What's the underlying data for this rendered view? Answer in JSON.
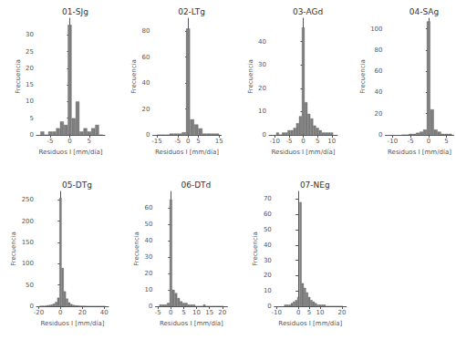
{
  "chart_data": [
    {
      "type": "bar",
      "title": "01-SJg",
      "xlabel": "Residuos I [mm/día]",
      "ylabel": "Frecuencia",
      "x": [
        -7,
        -6,
        -5,
        -4,
        -3,
        -2,
        -1,
        0,
        1,
        2,
        3,
        4,
        5,
        6,
        7,
        8
      ],
      "values": [
        1,
        0,
        1,
        1,
        2,
        4,
        3,
        33,
        5,
        10,
        1,
        2,
        1,
        2,
        3,
        0
      ],
      "color": "#7f7f7f",
      "xlim": [
        -8.5,
        9
      ],
      "xticks": [
        -5,
        0,
        5
      ],
      "ylim": [
        0,
        35
      ],
      "yticks": [
        0,
        5,
        10,
        15,
        20,
        25,
        30
      ],
      "grid": false
    },
    {
      "type": "bar",
      "title": "02-LTg",
      "xlabel": "Residuos I [mm/día]",
      "ylabel": "Frecuencia",
      "x": [
        -14,
        -12,
        -10,
        -8,
        -6,
        -4,
        -2,
        0,
        2,
        4,
        6,
        8,
        10,
        12,
        14
      ],
      "values": [
        0,
        0,
        0,
        1,
        1,
        1,
        2,
        82,
        12,
        8,
        5,
        1,
        1,
        1,
        1
      ],
      "color": "#7f7f7f",
      "xlim": [
        -17,
        16
      ],
      "xticks": [
        -15,
        -5,
        0,
        5,
        15
      ],
      "ylim": [
        0,
        90
      ],
      "yticks": [
        0,
        20,
        40,
        60,
        80
      ],
      "grid": false
    },
    {
      "type": "bar",
      "title": "03-AGd",
      "xlabel": "Residuos I [mm/día]",
      "ylabel": "Frecuencia",
      "x": [
        -9,
        -8,
        -7,
        -6,
        -5,
        -4,
        -3,
        -2,
        -1,
        0,
        1,
        2,
        3,
        4,
        5,
        6,
        7,
        8,
        9,
        10
      ],
      "values": [
        1,
        0,
        1,
        1,
        2,
        2,
        3,
        5,
        8,
        46,
        14,
        9,
        7,
        4,
        3,
        2,
        1,
        1,
        1,
        1
      ],
      "color": "#7f7f7f",
      "xlim": [
        -12,
        12
      ],
      "xticks": [
        -10,
        -5,
        0,
        5,
        10
      ],
      "ylim": [
        0,
        50
      ],
      "yticks": [
        0,
        10,
        20,
        30,
        40
      ],
      "grid": false
    },
    {
      "type": "bar",
      "title": "04-SAg",
      "xlabel": "Residuos I [mm/día]",
      "ylabel": "Frecuencia",
      "x": [
        -7,
        -6,
        -5,
        -4,
        -3,
        -2,
        -1,
        0,
        1,
        2,
        3,
        4,
        5,
        6
      ],
      "values": [
        0,
        0,
        1,
        1,
        2,
        3,
        5,
        107,
        24,
        5,
        3,
        1,
        1,
        1
      ],
      "color": "#7f7f7f",
      "xlim": [
        -12,
        7
      ],
      "xticks": [
        -10,
        -5,
        0,
        5
      ],
      "ylim": [
        0,
        110
      ],
      "yticks": [
        0,
        20,
        40,
        60,
        80,
        100
      ],
      "grid": false
    },
    {
      "type": "bar",
      "title": "05-DTg",
      "xlabel": "Residuos I [mm/día]",
      "ylabel": "Frecuencia",
      "x": [
        -18,
        -16,
        -14,
        -12,
        -10,
        -8,
        -6,
        -4,
        -2,
        0,
        2,
        4,
        6,
        8,
        10,
        12,
        14,
        16,
        18,
        20,
        22,
        24,
        26,
        28,
        30,
        32,
        34,
        36,
        38,
        40
      ],
      "values": [
        1,
        1,
        1,
        2,
        3,
        4,
        6,
        10,
        20,
        255,
        90,
        35,
        18,
        9,
        5,
        3,
        2,
        2,
        1,
        1,
        1,
        0,
        0,
        0,
        0,
        0,
        0,
        0,
        0,
        0
      ],
      "color": "#7f7f7f",
      "xlim": [
        -22,
        44
      ],
      "xticks": [
        -20,
        0,
        20,
        40
      ],
      "ylim": [
        0,
        270
      ],
      "yticks": [
        0,
        50,
        100,
        150,
        200,
        250
      ],
      "grid": false
    },
    {
      "type": "bar",
      "title": "06-DTd",
      "xlabel": "Residuos I [mm/día]",
      "ylabel": "Frecuencia",
      "x": [
        -4,
        -3,
        -2,
        -1,
        0,
        1,
        2,
        3,
        4,
        5,
        6,
        7,
        8,
        9,
        10,
        11,
        12,
        13,
        14,
        15,
        16,
        17,
        18,
        19,
        20
      ],
      "values": [
        1,
        1,
        1,
        2,
        65,
        10,
        8,
        5,
        3,
        2,
        2,
        1,
        1,
        1,
        0,
        0,
        0,
        1,
        0,
        0,
        0,
        0,
        0,
        0,
        0
      ],
      "color": "#7f7f7f",
      "xlim": [
        -6,
        22
      ],
      "xticks": [
        -5,
        0,
        5,
        10,
        15,
        20
      ],
      "ylim": [
        0,
        70
      ],
      "yticks": [
        0,
        10,
        20,
        30,
        40,
        50,
        60
      ],
      "grid": false
    },
    {
      "type": "bar",
      "title": "07-NEg",
      "xlabel": "Residuos I [mm/día]",
      "ylabel": "Frecuencia",
      "x": [
        -6,
        -5,
        -4,
        -3,
        -2,
        -1,
        0,
        1,
        2,
        3,
        4,
        5,
        6,
        7,
        8,
        9,
        10,
        11,
        12,
        13,
        14,
        15,
        16,
        17,
        18,
        19,
        20
      ],
      "values": [
        1,
        1,
        1,
        2,
        3,
        4,
        6,
        68,
        15,
        12,
        9,
        6,
        4,
        3,
        2,
        1,
        1,
        1,
        1,
        0,
        0,
        0,
        0,
        0,
        0,
        0,
        0
      ],
      "color": "#7f7f7f",
      "xlim": [
        -11,
        22
      ],
      "xticks": [
        -10,
        0,
        5,
        10,
        20
      ],
      "ylim": [
        0,
        75
      ],
      "yticks": [
        0,
        10,
        20,
        30,
        40,
        50,
        60,
        70
      ],
      "grid": false
    }
  ]
}
